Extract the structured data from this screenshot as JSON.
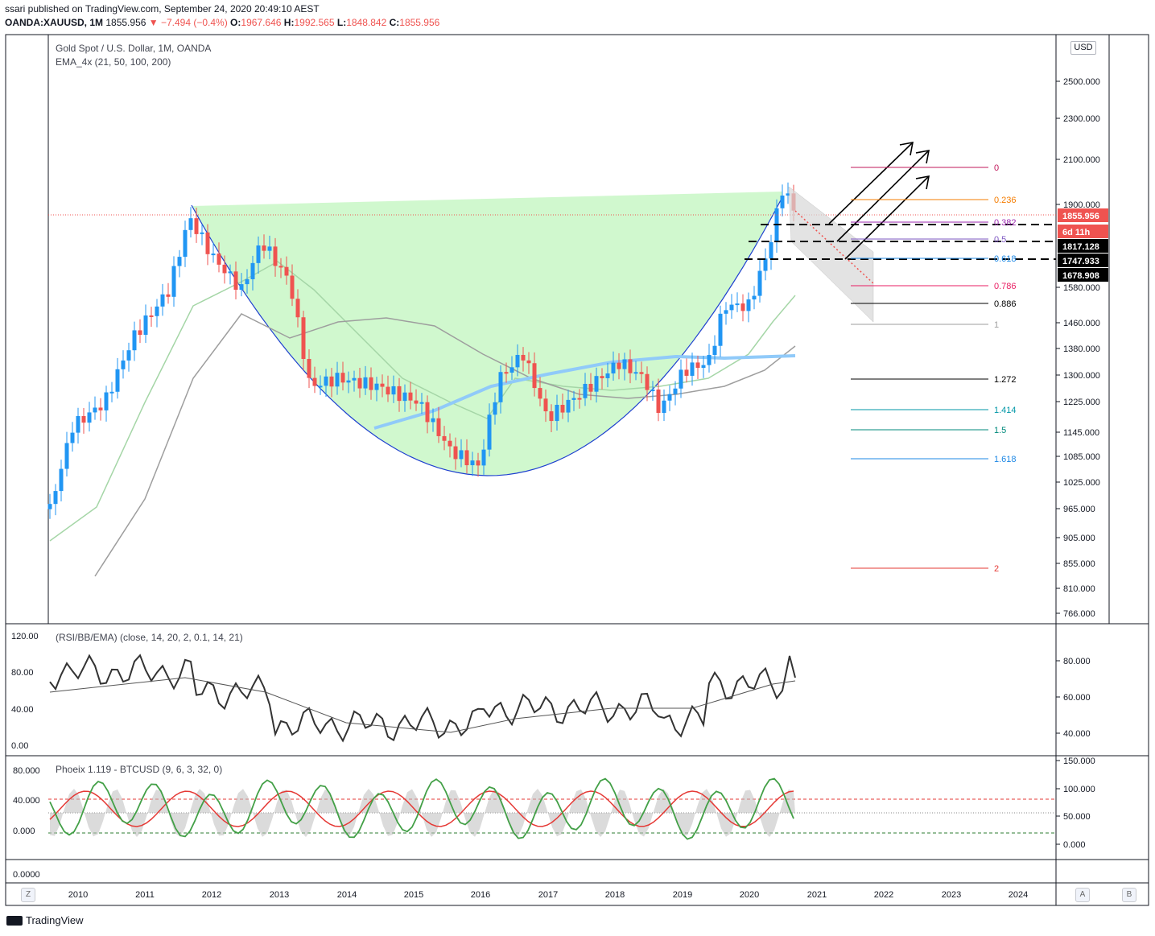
{
  "header": {
    "publisher": "ssari published on TradingView.com, September 24, 2020 20:49:10 AEST",
    "symbol": "OANDA:XAUUSD, 1M",
    "price": "1855.956",
    "change": "▼ −7.494 (−0.4%)",
    "o_label": "O:",
    "o_val": "1967.646",
    "h_label": "H:",
    "h_val": "1992.565",
    "l_label": "L:",
    "l_val": "1848.842",
    "c_label": "C:",
    "c_val": "1855.956"
  },
  "main": {
    "title": "Gold Spot / U.S. Dollar, 1M, OANDA",
    "subtitle": "EMA_4x (21, 50, 100, 200)",
    "currency": "USD"
  },
  "rsi": {
    "title": "(RSI/BB/EMA) (close, 14, 20, 2, 0.1, 14, 21)"
  },
  "phoeix": {
    "title": "Phoeix 1.119 - BTCUSD (9, 6, 3, 32, 0)"
  },
  "footer": {
    "brand": "TradingView",
    "left_btn": "Z",
    "btn_a": "A",
    "btn_b": "B"
  },
  "colors": {
    "up": "#2196f3",
    "down": "#ef5350",
    "cup": "#c8f7c5",
    "cupline": "#1e40d0"
  },
  "chart_data": [
    {
      "type": "candlestick",
      "title": "Gold Spot / U.S. Dollar, 1M, OANDA",
      "x_labels": [
        "2010",
        "2011",
        "2012",
        "2013",
        "2014",
        "2015",
        "2016",
        "2017",
        "2018",
        "2019",
        "2020",
        "2021",
        "2022",
        "2023",
        "2024"
      ],
      "y_ticks": [
        2500,
        2300,
        2100,
        1900,
        1580,
        1460,
        1380,
        1300,
        1225,
        1145,
        1085,
        1025,
        965,
        905,
        855,
        810,
        766
      ],
      "y_tick_labels": [
        "2500.000",
        "2300.000",
        "2100.000",
        "1900.000",
        "1580.000",
        "1460.000",
        "1380.000",
        "1300.000",
        "1225.000",
        "1145.000",
        "1085.000",
        "1025.000",
        "965.000",
        "905.000",
        "855.000",
        "810.000",
        "766.000"
      ],
      "price_labels": [
        {
          "value": "1855.956",
          "color": "#ef5350"
        },
        {
          "value": "6d 11h",
          "color": "#ef5350"
        },
        {
          "value": "1817.128",
          "color": "#000000"
        },
        {
          "value": "1747.933",
          "color": "#000000"
        },
        {
          "value": "1678.908",
          "color": "#000000"
        }
      ],
      "fib_levels": [
        {
          "label": "0",
          "color": "#c2185b"
        },
        {
          "label": "0.236",
          "color": "#f57c00"
        },
        {
          "label": "0.382",
          "color": "#9c27b0"
        },
        {
          "label": "0.5",
          "color": "#7e57c2"
        },
        {
          "label": "0.618",
          "color": "#1e88e5"
        },
        {
          "label": "0.786",
          "color": "#e91e63"
        },
        {
          "label": "0.886",
          "color": "#000000"
        },
        {
          "label": "1",
          "color": "#9e9e9e"
        },
        {
          "label": "1.272",
          "color": "#000000"
        },
        {
          "label": "1.414",
          "color": "#0097a7"
        },
        {
          "label": "1.5",
          "color": "#00897b"
        },
        {
          "label": "1.618",
          "color": "#1e88e5"
        },
        {
          "label": "2",
          "color": "#e53935"
        }
      ]
    },
    {
      "type": "line",
      "title": "(RSI/BB/EMA) (close, 14, 20, 2, 0.1, 14, 21)",
      "left_ticks": [
        "120.00",
        "80.00",
        "40.00",
        "0.00"
      ],
      "right_ticks": [
        "80.000",
        "60.000",
        "40.000"
      ]
    },
    {
      "type": "line",
      "title": "Phoeix 1.119 - BTCUSD (9, 6, 3, 32, 0)",
      "left_ticks": [
        "80.000",
        "40.000",
        "0.000"
      ],
      "right_ticks": [
        "150.000",
        "100.000",
        "50.000",
        "0.000"
      ],
      "bottom_pane_tick": "0.0000"
    }
  ]
}
